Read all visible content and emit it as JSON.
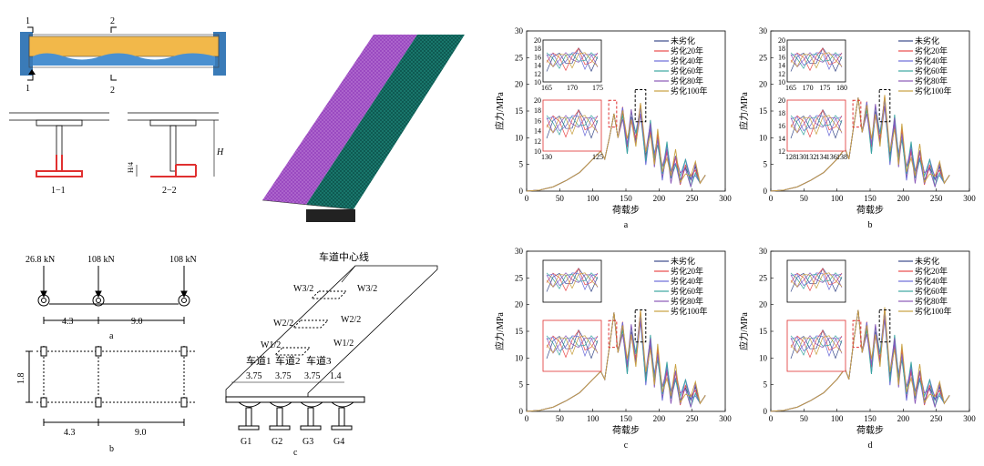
{
  "section_diagram": {
    "marks": [
      "1",
      "1",
      "2",
      "2"
    ],
    "captions": [
      "1−1",
      "2−2"
    ],
    "dims": {
      "quarter": "H/4",
      "full": "H"
    }
  },
  "load_diagram": {
    "loads": [
      "26.8 kN",
      "108 kN",
      "108 kN"
    ],
    "spacing": [
      "4.3",
      "9.0"
    ],
    "width": "1.8",
    "caption_a": "a",
    "caption_b": "b"
  },
  "lane_diagram": {
    "centerline": "车道中心线",
    "w_labels": [
      "W3/2",
      "W3/2",
      "W2/2",
      "W2/2",
      "W1/2",
      "W1/2"
    ],
    "lanes": [
      "车道1",
      "车道2",
      "车道3"
    ],
    "widths": [
      "3.75",
      "3.75",
      "3.75",
      "1.4"
    ],
    "girders": [
      "G1",
      "G2",
      "G3",
      "G4"
    ],
    "caption": "c"
  },
  "legend": [
    "未劣化",
    "劣化20年",
    "劣化40年",
    "劣化60年",
    "劣化80年",
    "劣化100年"
  ],
  "series_colors": [
    "#3a4a8a",
    "#e84a4a",
    "#6a6ad8",
    "#3aa6a0",
    "#8a58b8",
    "#c8a040"
  ],
  "chart_data": [
    {
      "type": "line",
      "caption": "a",
      "xlabel": "荷载步",
      "ylabel": "应力/MPa",
      "xlim": [
        0,
        300
      ],
      "ylim": [
        0,
        30
      ],
      "xticks": [
        0,
        50,
        100,
        150,
        200,
        250,
        300
      ],
      "yticks": [
        0,
        5,
        10,
        15,
        20,
        25,
        30
      ],
      "series_names": [
        "未劣化",
        "劣化20年",
        "劣化40年",
        "劣化60年",
        "劣化80年",
        "劣化100年"
      ],
      "base": [
        [
          0,
          0
        ],
        [
          20,
          0.2
        ],
        [
          40,
          0.8
        ],
        [
          60,
          2
        ],
        [
          80,
          3.5
        ],
        [
          100,
          6
        ],
        [
          112,
          7.5
        ],
        [
          118,
          6
        ],
        [
          125,
          10
        ],
        [
          132,
          14.5
        ],
        [
          138,
          10
        ],
        [
          145,
          15
        ],
        [
          152,
          8
        ],
        [
          158,
          14
        ],
        [
          165,
          10
        ],
        [
          172,
          15.5
        ],
        [
          180,
          6
        ],
        [
          187,
          12
        ],
        [
          193,
          6
        ],
        [
          198,
          10
        ],
        [
          205,
          3
        ],
        [
          212,
          8
        ],
        [
          218,
          3
        ],
        [
          225,
          6
        ],
        [
          232,
          2
        ],
        [
          240,
          5
        ],
        [
          248,
          2
        ],
        [
          255,
          4
        ],
        [
          262,
          1.5
        ],
        [
          270,
          3
        ]
      ],
      "inset_top": {
        "xticks": [
          165,
          170,
          175
        ],
        "yticks": [
          10,
          12,
          14,
          16,
          18,
          20
        ]
      },
      "inset_bottom": {
        "xticks": [
          130,
          125
        ],
        "yticks": [
          10,
          12,
          14,
          16,
          18,
          20
        ]
      }
    },
    {
      "type": "line",
      "caption": "b",
      "xlabel": "荷载步",
      "ylabel": "应力/MPa",
      "xlim": [
        0,
        300
      ],
      "ylim": [
        0,
        30
      ],
      "xticks": [
        0,
        50,
        100,
        150,
        200,
        250,
        300
      ],
      "yticks": [
        0,
        5,
        10,
        15,
        20,
        25,
        30
      ],
      "series_names": [
        "未劣化",
        "劣化20年",
        "劣化40年",
        "劣化60年",
        "劣化80年",
        "劣化100年"
      ],
      "base": [
        [
          0,
          0
        ],
        [
          20,
          0.2
        ],
        [
          40,
          0.8
        ],
        [
          60,
          2
        ],
        [
          80,
          3.5
        ],
        [
          100,
          6
        ],
        [
          112,
          8
        ],
        [
          118,
          6
        ],
        [
          125,
          12
        ],
        [
          132,
          17.5
        ],
        [
          138,
          11
        ],
        [
          145,
          16
        ],
        [
          152,
          8
        ],
        [
          158,
          15
        ],
        [
          165,
          10
        ],
        [
          172,
          17
        ],
        [
          180,
          6
        ],
        [
          187,
          13
        ],
        [
          193,
          6
        ],
        [
          198,
          11
        ],
        [
          205,
          3
        ],
        [
          212,
          8
        ],
        [
          218,
          3
        ],
        [
          225,
          7
        ],
        [
          232,
          2
        ],
        [
          240,
          5
        ],
        [
          248,
          2
        ],
        [
          255,
          4
        ],
        [
          262,
          1.5
        ],
        [
          270,
          3
        ]
      ],
      "inset_top": {
        "xticks": [
          165,
          170,
          175,
          180
        ],
        "yticks": [
          10,
          12,
          14,
          16,
          18,
          20
        ]
      },
      "inset_bottom": {
        "xticks": [
          128,
          130,
          132,
          134,
          136,
          138
        ],
        "yticks": [
          12,
          14,
          16,
          18,
          20
        ]
      }
    },
    {
      "type": "line",
      "caption": "c",
      "xlabel": "荷载步",
      "ylabel": "应力/MPa",
      "xlim": [
        0,
        300
      ],
      "ylim": [
        0,
        30
      ],
      "xticks": [
        0,
        50,
        100,
        150,
        200,
        250,
        300
      ],
      "yticks": [
        0,
        5,
        10,
        15,
        20,
        25,
        30
      ],
      "series_names": [
        "未劣化",
        "劣化20年",
        "劣化40年",
        "劣化60年",
        "劣化80年",
        "劣化100年"
      ],
      "base": [
        [
          0,
          0
        ],
        [
          20,
          0.2
        ],
        [
          40,
          0.8
        ],
        [
          60,
          2
        ],
        [
          80,
          3.5
        ],
        [
          100,
          6
        ],
        [
          112,
          7.5
        ],
        [
          118,
          6
        ],
        [
          125,
          12
        ],
        [
          132,
          18.5
        ],
        [
          138,
          11
        ],
        [
          145,
          16
        ],
        [
          152,
          8
        ],
        [
          158,
          15
        ],
        [
          165,
          10
        ],
        [
          172,
          18
        ],
        [
          180,
          6
        ],
        [
          187,
          13
        ],
        [
          193,
          6
        ],
        [
          198,
          11
        ],
        [
          205,
          3
        ],
        [
          212,
          8
        ],
        [
          218,
          3
        ],
        [
          225,
          7
        ],
        [
          232,
          2
        ],
        [
          240,
          5
        ],
        [
          248,
          2
        ],
        [
          255,
          4
        ],
        [
          262,
          1.5
        ],
        [
          270,
          3
        ]
      ],
      "inset_top": {
        "xticks": [],
        "yticks": []
      },
      "inset_bottom": {
        "xticks": [],
        "yticks": []
      }
    },
    {
      "type": "line",
      "caption": "d",
      "xlabel": "荷载步",
      "ylabel": "应力/MPa",
      "xlim": [
        0,
        300
      ],
      "ylim": [
        0,
        30
      ],
      "xticks": [
        0,
        50,
        100,
        150,
        200,
        250,
        300
      ],
      "yticks": [
        0,
        5,
        10,
        15,
        20,
        25,
        30
      ],
      "series_names": [
        "未劣化",
        "劣化20年",
        "劣化40年",
        "劣化60年",
        "劣化80年",
        "劣化100年"
      ],
      "base": [
        [
          0,
          0
        ],
        [
          20,
          0.2
        ],
        [
          40,
          0.8
        ],
        [
          60,
          2
        ],
        [
          80,
          3.5
        ],
        [
          100,
          6
        ],
        [
          112,
          8
        ],
        [
          118,
          6
        ],
        [
          125,
          13
        ],
        [
          132,
          19
        ],
        [
          138,
          11
        ],
        [
          145,
          16
        ],
        [
          152,
          8
        ],
        [
          158,
          15
        ],
        [
          165,
          10
        ],
        [
          172,
          18.5
        ],
        [
          180,
          6
        ],
        [
          187,
          13
        ],
        [
          193,
          6
        ],
        [
          198,
          11
        ],
        [
          205,
          3
        ],
        [
          212,
          8
        ],
        [
          218,
          3
        ],
        [
          225,
          7
        ],
        [
          232,
          2
        ],
        [
          240,
          5
        ],
        [
          248,
          2
        ],
        [
          255,
          4
        ],
        [
          262,
          1.5
        ],
        [
          270,
          3
        ]
      ],
      "inset_top": {
        "xticks": [],
        "yticks": []
      },
      "inset_bottom": {
        "xticks": [],
        "yticks": []
      }
    }
  ]
}
